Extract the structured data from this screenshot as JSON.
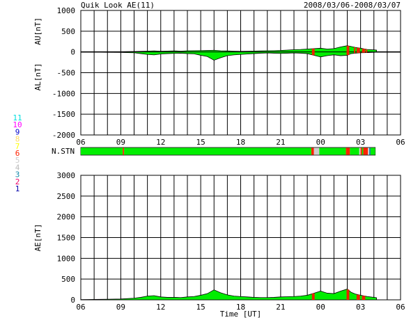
{
  "header": {
    "title": "Quik Look AE(11)",
    "date_range": "2008/03/06-2008/03/07"
  },
  "chart_data": [
    {
      "type": "area",
      "panel": "AU/AL",
      "ylabel_upper": "AU[nT]",
      "ylabel_lower": "AL[nT]",
      "ylim": [
        -2000,
        1000
      ],
      "yticks": [
        1000,
        500,
        0,
        -500,
        -1000,
        -1500,
        -2000
      ],
      "x_hours": [
        6,
        30
      ],
      "xticks": [
        "06",
        "09",
        "12",
        "15",
        "18",
        "21",
        "00",
        "03",
        "06"
      ],
      "grid": true,
      "series": [
        {
          "key": "AU",
          "color": "#00ee00",
          "x": [
            6.0,
            7.0,
            8.0,
            9.0,
            10.0,
            10.5,
            11.0,
            11.5,
            12.0,
            12.5,
            13.0,
            13.5,
            14.0,
            14.5,
            15.0,
            15.5,
            16.0,
            16.5,
            17.0,
            17.5,
            18.0,
            18.5,
            19.0,
            19.5,
            20.0,
            20.5,
            21.0,
            21.5,
            22.0,
            22.5,
            23.0,
            23.5,
            24.0,
            24.5,
            25.0,
            25.5,
            26.0,
            26.3,
            26.6,
            27.0,
            27.5,
            28.0,
            28.2
          ],
          "values": [
            0,
            2,
            3,
            5,
            10,
            15,
            20,
            25,
            18,
            22,
            25,
            20,
            28,
            30,
            32,
            35,
            40,
            28,
            25,
            20,
            15,
            18,
            22,
            25,
            28,
            30,
            35,
            45,
            55,
            60,
            70,
            80,
            90,
            70,
            80,
            120,
            150,
            130,
            110,
            90,
            60,
            50,
            45
          ]
        },
        {
          "key": "AL",
          "color": "#00ee00",
          "x": [
            6.0,
            7.0,
            8.0,
            9.0,
            10.0,
            10.5,
            11.0,
            11.5,
            12.0,
            12.5,
            13.0,
            13.5,
            14.0,
            14.5,
            15.0,
            15.5,
            16.0,
            16.5,
            17.0,
            17.5,
            18.0,
            18.5,
            19.0,
            19.5,
            20.0,
            20.5,
            21.0,
            21.5,
            22.0,
            22.5,
            23.0,
            23.5,
            24.0,
            24.5,
            25.0,
            25.5,
            26.0,
            26.3,
            26.6,
            27.0,
            27.5,
            28.0,
            28.2
          ],
          "values": [
            0,
            -5,
            -10,
            -12,
            -20,
            -40,
            -60,
            -70,
            -50,
            -40,
            -35,
            -30,
            -40,
            -45,
            -80,
            -110,
            -200,
            -140,
            -90,
            -70,
            -60,
            -50,
            -40,
            -30,
            -25,
            -30,
            -35,
            -30,
            -25,
            -30,
            -40,
            -80,
            -120,
            -90,
            -70,
            -90,
            -80,
            -40,
            -30,
            -20,
            -15,
            -10,
            -5
          ]
        }
      ],
      "red_highlights": [
        [
          23.35,
          23.55
        ],
        [
          25.95,
          26.15
        ],
        [
          26.5,
          26.6
        ],
        [
          26.7,
          26.95
        ],
        [
          27.1,
          27.35
        ],
        [
          27.4,
          27.5
        ]
      ]
    },
    {
      "type": "heatmap",
      "panel": "N.STN",
      "label": "N.STN",
      "legend": [
        {
          "n": "11",
          "color": "#00dddd"
        },
        {
          "n": "10",
          "color": "#ff00ff"
        },
        {
          "n": "9",
          "color": "#0000cc"
        },
        {
          "n": "8",
          "color": "#ffdd66"
        },
        {
          "n": "7",
          "color": "#ffff00"
        },
        {
          "n": "6",
          "color": "#ff2200"
        },
        {
          "n": "5",
          "color": "#cccccc"
        },
        {
          "n": "4",
          "color": "#bbbbbb"
        },
        {
          "n": "3",
          "color": "#1188aa"
        },
        {
          "n": "2",
          "color": "#ee0066"
        },
        {
          "n": "1",
          "color": "#0000aa"
        }
      ],
      "segments": [
        {
          "from": 6.0,
          "to": 9.15,
          "n": 11
        },
        {
          "from": 9.15,
          "to": 9.25,
          "n": 6
        },
        {
          "from": 9.25,
          "to": 23.3,
          "n": 11
        },
        {
          "from": 23.3,
          "to": 23.5,
          "n": 6
        },
        {
          "from": 23.5,
          "to": 23.9,
          "n": 5
        },
        {
          "from": 23.9,
          "to": 25.9,
          "n": 11
        },
        {
          "from": 25.9,
          "to": 26.2,
          "n": 6
        },
        {
          "from": 26.2,
          "to": 26.9,
          "n": 11
        },
        {
          "from": 26.9,
          "to": 27.0,
          "n": 5
        },
        {
          "from": 27.0,
          "to": 27.1,
          "n": 6
        },
        {
          "from": 27.1,
          "to": 27.2,
          "n": 11
        },
        {
          "from": 27.2,
          "to": 27.55,
          "n": 6
        },
        {
          "from": 27.55,
          "to": 27.65,
          "n": 5
        },
        {
          "from": 27.65,
          "to": 27.75,
          "n": 3
        },
        {
          "from": 27.75,
          "to": 28.1,
          "n": 11
        }
      ]
    },
    {
      "type": "area",
      "panel": "AE",
      "ylabel": "AE[nT]",
      "xlabel": "Time [UT]",
      "ylim": [
        0,
        3000
      ],
      "yticks": [
        3000,
        2500,
        2000,
        1500,
        1000,
        500,
        0
      ],
      "xticks": [
        "06",
        "09",
        "12",
        "15",
        "18",
        "21",
        "00",
        "03",
        "06"
      ],
      "grid": true,
      "series": [
        {
          "key": "AE",
          "color": "#00ee00",
          "x": [
            6.0,
            7.0,
            8.0,
            9.0,
            10.0,
            10.5,
            11.0,
            11.5,
            12.0,
            12.5,
            13.0,
            13.5,
            14.0,
            14.5,
            15.0,
            15.5,
            16.0,
            16.5,
            17.0,
            17.5,
            18.0,
            18.5,
            19.0,
            19.5,
            20.0,
            20.5,
            21.0,
            21.5,
            22.0,
            22.5,
            23.0,
            23.5,
            24.0,
            24.5,
            25.0,
            25.5,
            26.0,
            26.3,
            26.6,
            27.0,
            27.5,
            28.0,
            28.2
          ],
          "values": [
            5,
            10,
            15,
            20,
            40,
            60,
            90,
            100,
            70,
            60,
            60,
            55,
            70,
            80,
            110,
            150,
            240,
            170,
            120,
            90,
            80,
            70,
            60,
            55,
            55,
            60,
            70,
            75,
            80,
            90,
            110,
            160,
            210,
            160,
            150,
            210,
            260,
            180,
            140,
            110,
            80,
            60,
            50
          ]
        }
      ],
      "red_highlights": [
        [
          23.35,
          23.55
        ],
        [
          25.95,
          26.15
        ],
        [
          26.7,
          26.95
        ],
        [
          27.1,
          27.35
        ]
      ]
    }
  ]
}
